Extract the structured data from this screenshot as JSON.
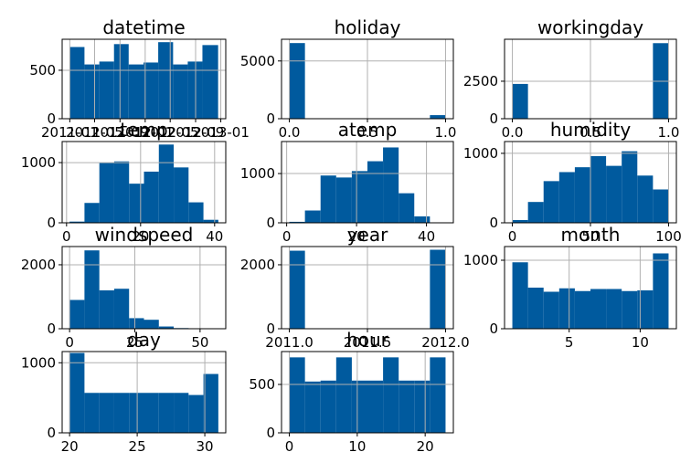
{
  "chart_data": [
    {
      "type": "histogram",
      "title": "datetime",
      "color": "#005a9e",
      "grid": true,
      "bins": [
        "2011-01-01",
        "2011-03-13",
        "2011-05-24",
        "2011-08-03",
        "2011-10-13",
        "2011-12-24",
        "2012-03-04",
        "2012-05-15",
        "2012-07-25",
        "2012-10-04",
        "2012-12-19"
      ],
      "values": [
        740,
        560,
        590,
        770,
        560,
        580,
        790,
        560,
        590,
        760
      ],
      "xlim": [
        "2010-11-25",
        "2013-01-25"
      ],
      "xticks": [
        "2011-01",
        "2011-05",
        "2011-09",
        "2012-01",
        "2012-05",
        "2012-09",
        "2013-01"
      ],
      "ylim": [
        0,
        820
      ],
      "yticks": [
        0,
        500
      ]
    },
    {
      "type": "histogram",
      "title": "holiday",
      "color": "#005a9e",
      "grid": true,
      "bins": [
        0,
        0.1,
        0.2,
        0.3,
        0.4,
        0.5,
        0.6,
        0.7,
        0.8,
        0.9,
        1.0
      ],
      "values": [
        6550,
        0,
        0,
        0,
        0,
        0,
        0,
        0,
        0,
        310
      ],
      "xlim": [
        -0.05,
        1.05
      ],
      "xticks": [
        {
          "value": 0,
          "label": "0.0"
        },
        {
          "value": 0.5,
          "label": "0.5"
        },
        {
          "value": 1,
          "label": "1.0"
        }
      ],
      "ylim": [
        0,
        6880
      ],
      "yticks": [
        0,
        5000
      ]
    },
    {
      "type": "histogram",
      "title": "workingday",
      "color": "#005a9e",
      "grid": true,
      "bins": [
        0,
        0.1,
        0.2,
        0.3,
        0.4,
        0.5,
        0.6,
        0.7,
        0.8,
        0.9,
        1.0
      ],
      "values": [
        2320,
        0,
        0,
        0,
        0,
        0,
        0,
        0,
        0,
        5040
      ],
      "xlim": [
        -0.05,
        1.05
      ],
      "xticks": [
        {
          "value": 0,
          "label": "0.0"
        },
        {
          "value": 0.5,
          "label": "0.5"
        },
        {
          "value": 1,
          "label": "1.0"
        }
      ],
      "ylim": [
        0,
        5300
      ],
      "yticks": [
        0,
        2500
      ]
    },
    {
      "type": "histogram",
      "title": "temp",
      "color": "#005a9e",
      "grid": true,
      "bins": [
        0.82,
        4.84,
        8.86,
        12.87,
        16.89,
        20.91,
        24.93,
        28.95,
        32.96,
        36.98,
        41.0
      ],
      "values": [
        20,
        330,
        1000,
        1020,
        650,
        850,
        1300,
        920,
        340,
        50
      ],
      "xlim": [
        -1.19,
        43.01
      ],
      "xticks": [
        0,
        20,
        40
      ],
      "ylim": [
        0,
        1350
      ],
      "yticks": [
        0,
        1000
      ]
    },
    {
      "type": "histogram",
      "title": "atemp",
      "color": "#005a9e",
      "grid": true,
      "bins": [
        0.76,
        5.23,
        9.7,
        14.17,
        18.64,
        23.11,
        27.57,
        32.04,
        36.51,
        40.98,
        45.455
      ],
      "values": [
        20,
        250,
        960,
        920,
        1050,
        1250,
        1530,
        600,
        130,
        0
      ],
      "xlim": [
        -1.47,
        47.69
      ],
      "xticks": [
        0,
        20,
        40
      ],
      "ylim": [
        0,
        1650
      ],
      "yticks": [
        0,
        1000
      ]
    },
    {
      "type": "histogram",
      "title": "humidity",
      "color": "#005a9e",
      "grid": true,
      "bins": [
        0,
        10,
        20,
        30,
        40,
        50,
        60,
        70,
        80,
        90,
        100
      ],
      "values": [
        40,
        300,
        600,
        730,
        800,
        960,
        820,
        1030,
        680,
        480
      ],
      "xlim": [
        -5,
        105
      ],
      "xticks": [
        0,
        50,
        100
      ],
      "ylim": [
        0,
        1170
      ],
      "yticks": [
        0,
        1000
      ]
    },
    {
      "type": "histogram",
      "title": "windspeed",
      "color": "#005a9e",
      "grid": true,
      "bins": [
        0,
        5.7,
        11.4,
        17.1,
        22.8,
        28.5,
        34.2,
        39.9,
        45.6,
        51.3,
        57.0
      ],
      "values": [
        900,
        2450,
        1200,
        1250,
        330,
        280,
        70,
        20,
        5,
        2
      ],
      "xlim": [
        -2.85,
        59.85
      ],
      "xticks": [
        0,
        25,
        50
      ],
      "ylim": [
        0,
        2570
      ],
      "yticks": [
        0,
        2000
      ]
    },
    {
      "type": "histogram",
      "title": "year",
      "color": "#005a9e",
      "grid": true,
      "bins": [
        2011,
        2011.1,
        2011.2,
        2011.3,
        2011.4,
        2011.5,
        2011.6,
        2011.7,
        2011.8,
        2011.9,
        2012
      ],
      "values": [
        2440,
        0,
        0,
        0,
        0,
        0,
        0,
        0,
        0,
        2470
      ],
      "xlim": [
        2010.95,
        2012.05
      ],
      "xticks": [
        {
          "value": 2011,
          "label": "2011.0"
        },
        {
          "value": 2011.5,
          "label": "2011.5"
        },
        {
          "value": 2012,
          "label": "2012.0"
        }
      ],
      "ylim": [
        0,
        2570
      ],
      "yticks": [
        0,
        2000
      ]
    },
    {
      "type": "histogram",
      "title": "month",
      "color": "#005a9e",
      "grid": true,
      "bins": [
        1,
        2.1,
        3.2,
        4.3,
        5.4,
        6.5,
        7.6,
        8.7,
        9.8,
        10.9,
        12
      ],
      "values": [
        970,
        600,
        540,
        590,
        550,
        580,
        580,
        550,
        560,
        1100
      ],
      "xlim": [
        0.45,
        12.55
      ],
      "xticks": [
        5,
        10
      ],
      "ylim": [
        0,
        1200
      ],
      "yticks": [
        0,
        1000
      ]
    },
    {
      "type": "histogram",
      "title": "day",
      "color": "#005a9e",
      "grid": true,
      "bins": [
        20,
        21.1,
        22.2,
        23.3,
        24.4,
        25.5,
        26.6,
        27.7,
        28.8,
        29.9,
        31
      ],
      "values": [
        1140,
        570,
        570,
        570,
        570,
        570,
        570,
        570,
        540,
        840
      ],
      "xlim": [
        19.45,
        31.55
      ],
      "xticks": [
        20,
        25,
        30
      ],
      "ylim": [
        0,
        1160
      ],
      "yticks": [
        0,
        1000
      ]
    },
    {
      "type": "histogram",
      "title": "hour",
      "color": "#005a9e",
      "grid": true,
      "bins": [
        0,
        2.3,
        4.6,
        6.9,
        9.2,
        11.5,
        13.8,
        16.1,
        18.4,
        20.7,
        23
      ],
      "values": [
        780,
        530,
        540,
        780,
        540,
        540,
        780,
        540,
        540,
        780
      ],
      "xlim": [
        -1.15,
        24.15
      ],
      "xticks": [
        0,
        10,
        20
      ],
      "ylim": [
        0,
        840
      ],
      "yticks": [
        0,
        500
      ]
    }
  ]
}
